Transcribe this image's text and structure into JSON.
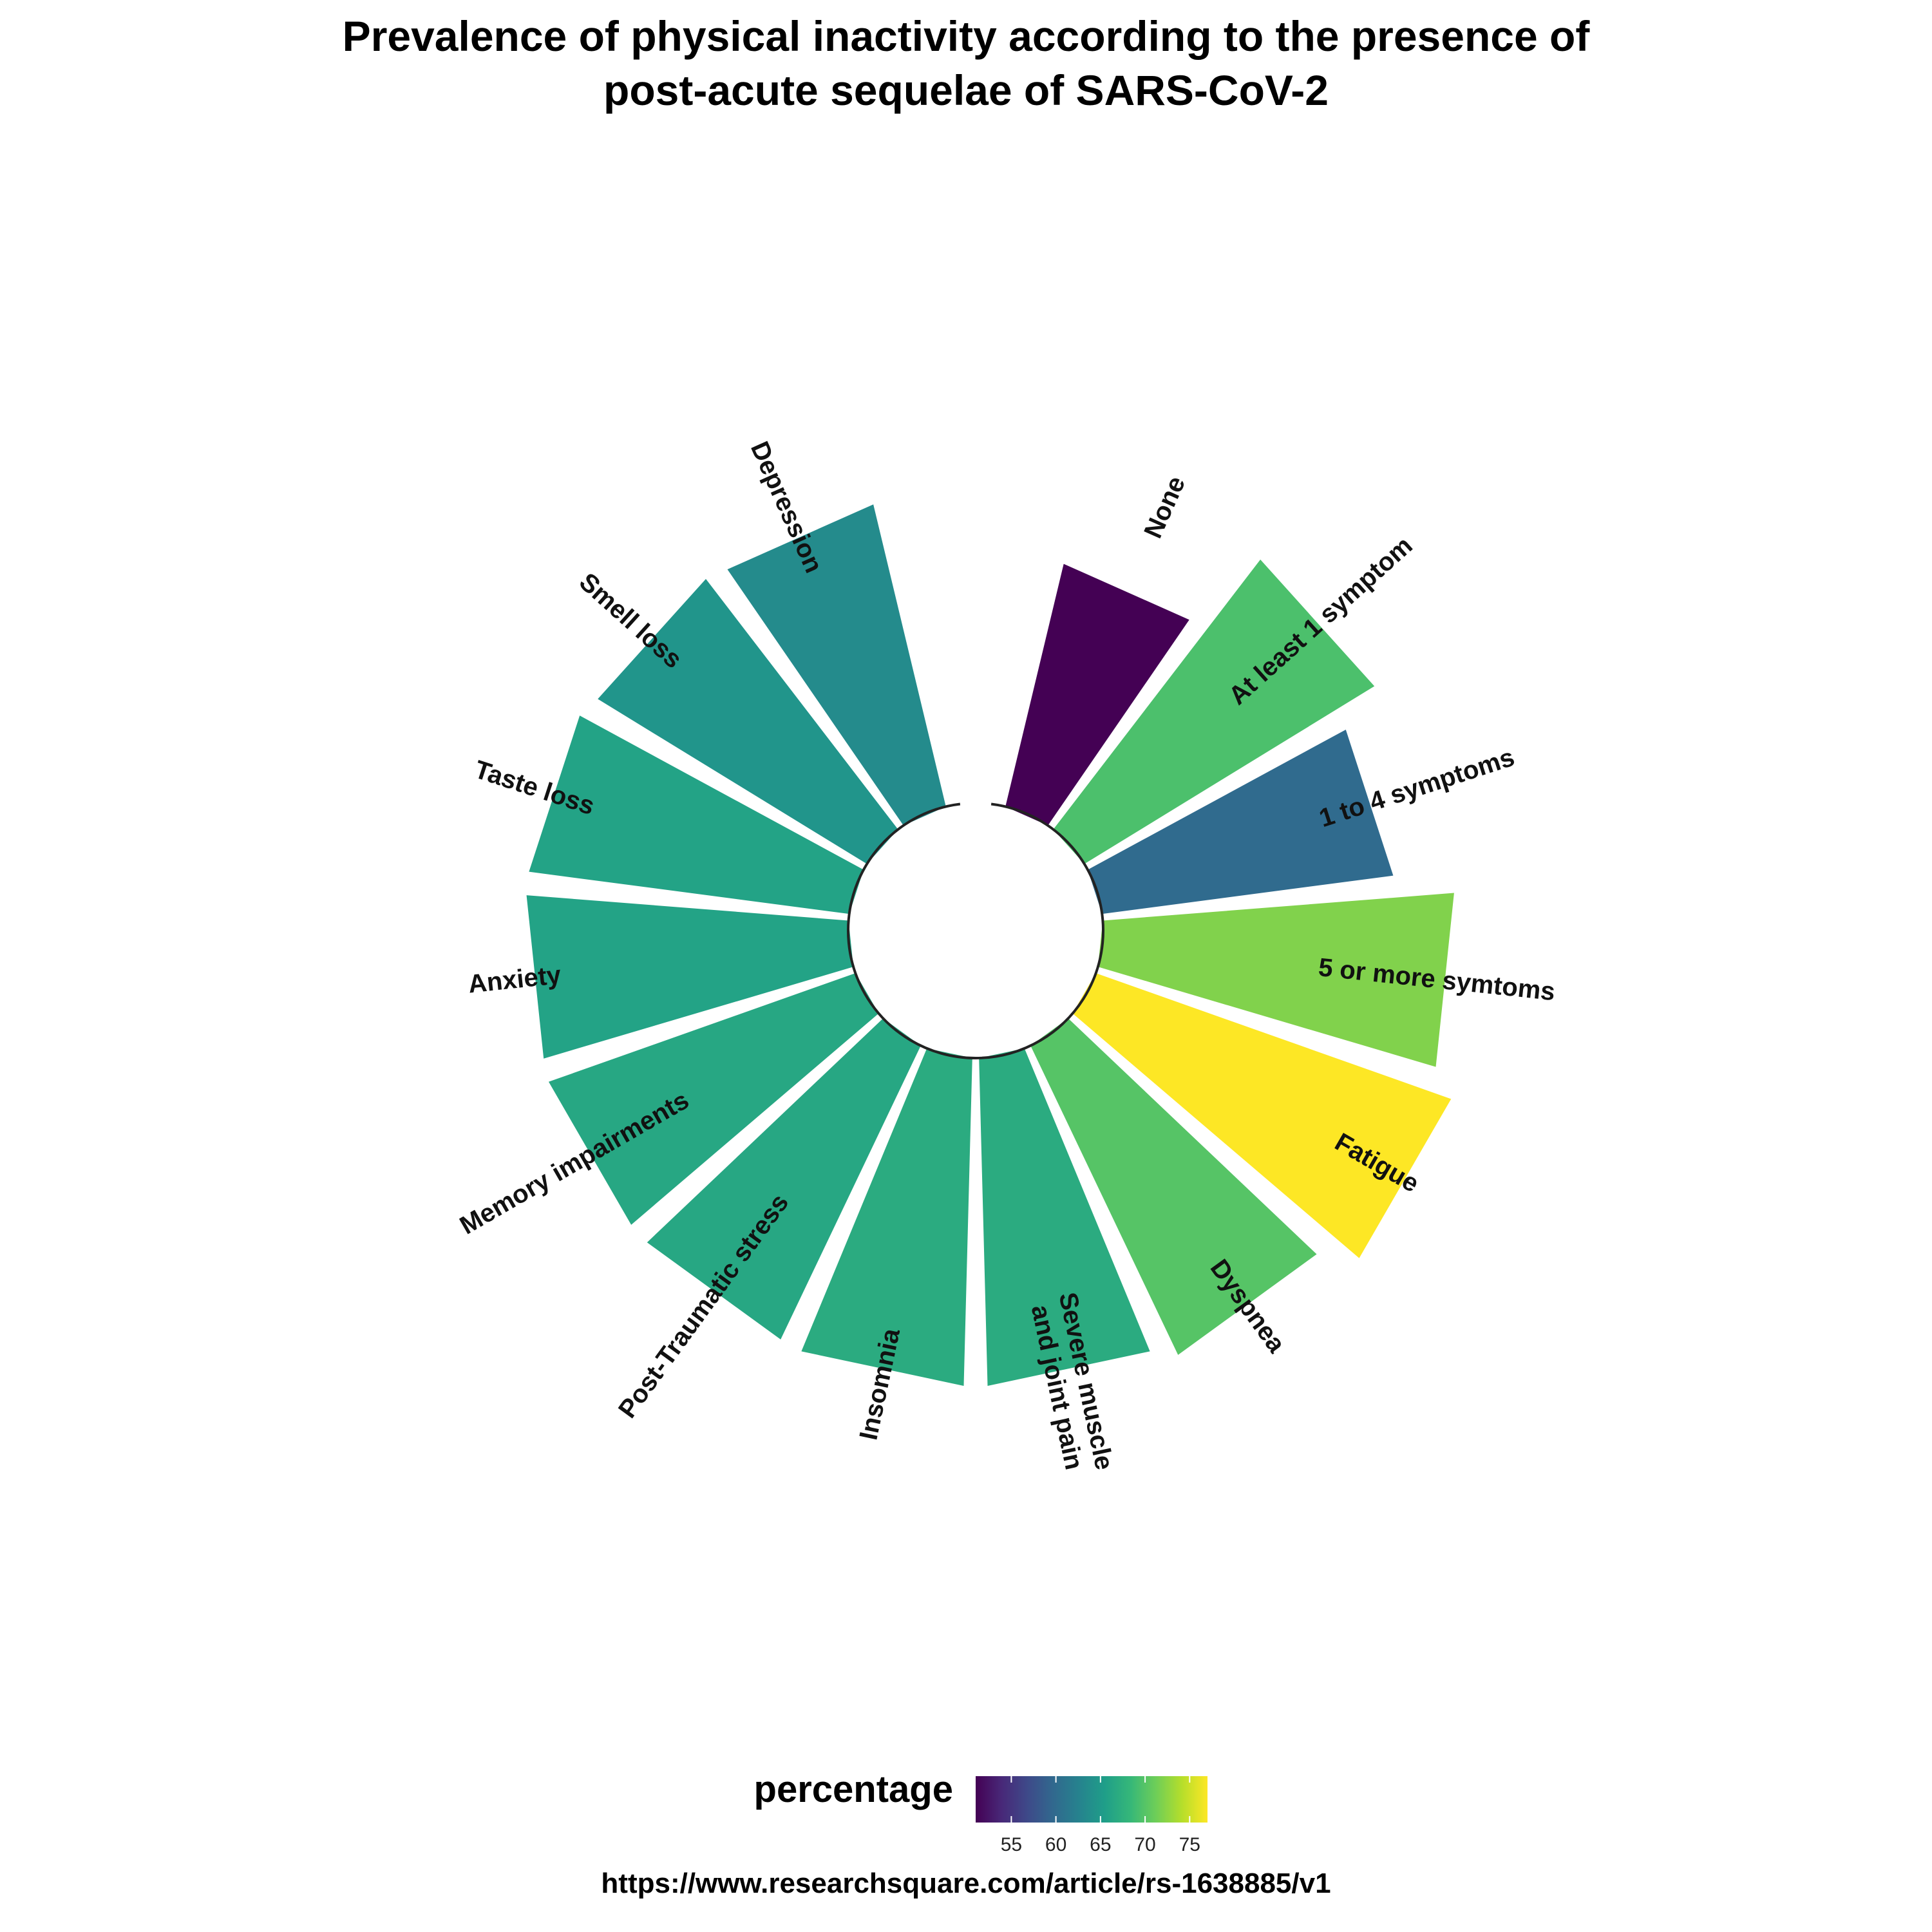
{
  "chart_data": {
    "type": "circular-bar",
    "title_lines": [
      "Prevalence of physical inactivity according to the presence of",
      "post-acute sequelae of SARS-CoV-2"
    ],
    "categories": [
      [
        "None"
      ],
      [
        "At least 1 symptom"
      ],
      [
        "1 to 4 symptoms"
      ],
      [
        "5 or more symtoms"
      ],
      [
        "Fatigue"
      ],
      [
        "Dyspnea"
      ],
      [
        "Severe muscle",
        "and joint pain"
      ],
      [
        "Insomnia"
      ],
      [
        "Post-Traumatic stress"
      ],
      [
        "Memory impairments"
      ],
      [
        "Anxiety"
      ],
      [
        "Taste loss"
      ],
      [
        "Smell loss"
      ],
      [
        "Depression"
      ]
    ],
    "values": [
      51.0,
      69.5,
      60.0,
      72.0,
      77.0,
      70.0,
      67.0,
      67.0,
      66.5,
      66.5,
      66.0,
      66.0,
      64.5,
      63.5
    ],
    "legend": {
      "title": "percentage",
      "ticks": [
        55,
        60,
        65,
        70,
        75
      ],
      "range": [
        51,
        77
      ],
      "palette": "viridis",
      "position": "bottom"
    },
    "source": "https://www.researchsquare.com/article/rs-1638885/v1"
  }
}
